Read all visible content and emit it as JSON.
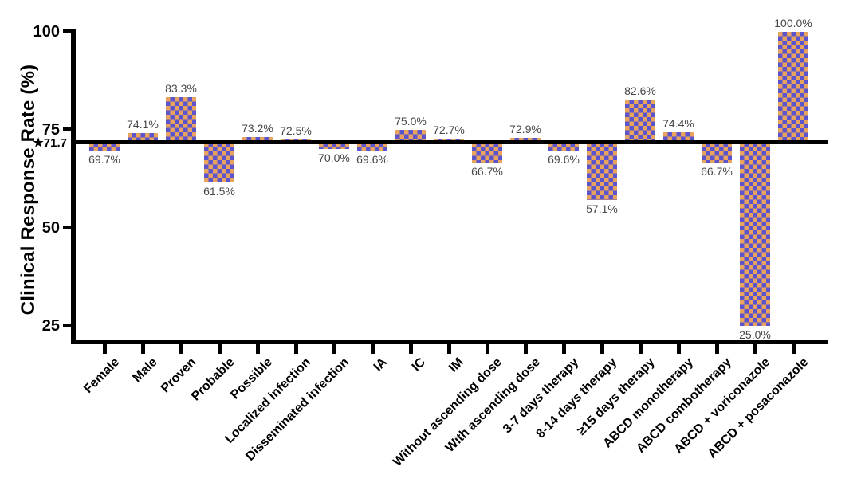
{
  "chart_data": {
    "type": "bar",
    "title": "",
    "xlabel": "",
    "ylabel": "Clinical Response Rate (%)",
    "ylim": [
      20,
      100
    ],
    "grid": false,
    "legend": "none",
    "yticks": [
      {
        "label": "100",
        "value": 100
      },
      {
        "label": "75",
        "value": 75
      },
      {
        "label": "50",
        "value": 50
      },
      {
        "label": "25",
        "value": 25
      }
    ],
    "baseline_value": 71.7,
    "baseline_label": "★71.7",
    "categories": [
      "Female",
      "Male",
      "Proven",
      "Probable",
      "Possible",
      "Localized infection",
      "Disseminated infection",
      "IA",
      "IC",
      "IM",
      "Without ascending dose",
      "With ascending dose",
      "3-7 days therapy",
      "8-14 days therapy",
      "≥15 days therapy",
      "ABCD monotherapy",
      "ABCD combotherapy",
      "ABCD + voriconazole",
      "ABCD + posaconazole"
    ],
    "values": [
      69.7,
      74.1,
      83.3,
      61.5,
      73.2,
      72.5,
      70.0,
      69.6,
      75.0,
      72.7,
      66.7,
      72.9,
      69.6,
      57.1,
      82.6,
      74.4,
      66.7,
      25.0,
      100.0
    ],
    "value_labels": [
      "69.7%",
      "74.1%",
      "83.3%",
      "61.5%",
      "73.2%",
      "72.5%",
      "70.0%",
      "69.6%",
      "75.0%",
      "72.7%",
      "66.7%",
      "72.9%",
      "69.6%",
      "57.1%",
      "82.6%",
      "74.4%",
      "66.7%",
      "25.0%",
      "100.0%"
    ],
    "bar_style": {
      "pattern": "checkerboard",
      "color_purple": "#5b54cd",
      "color_orange": "#e8a35e"
    },
    "axis_color": "#000000",
    "value_label_color": "#474747"
  }
}
